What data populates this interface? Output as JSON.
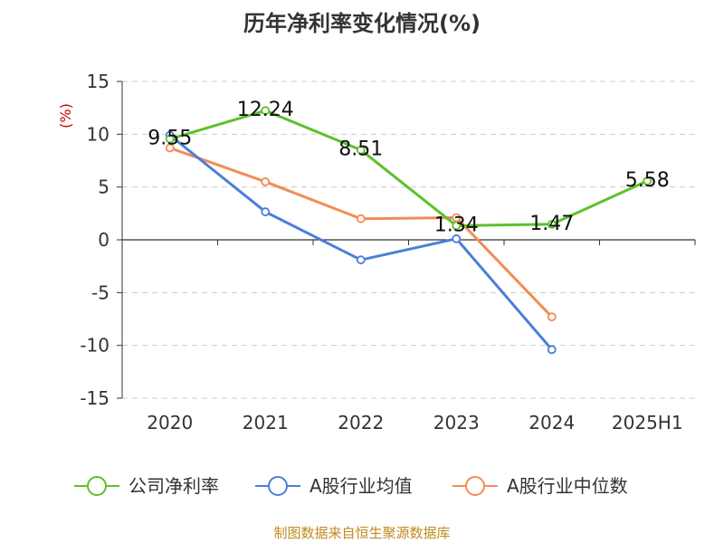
{
  "chart_data": {
    "type": "line",
    "title": "历年净利率变化情况(%)",
    "ylabel": "(%)",
    "xlabel": "",
    "categories": [
      "2020",
      "2021",
      "2022",
      "2023",
      "2024",
      "2025H1"
    ],
    "ylim": [
      -15,
      15
    ],
    "yticks": [
      15,
      10,
      5,
      0,
      -5,
      -10,
      -15
    ],
    "ytick_labels": [
      "15",
      "10",
      "5",
      "0",
      "-5",
      "-10",
      "-15"
    ],
    "grid": true,
    "legend_position": "bottom",
    "series": [
      {
        "name": "公司净利率",
        "color": "#5cc12b",
        "values": [
          9.55,
          12.24,
          8.51,
          1.34,
          1.47,
          5.58
        ],
        "labels": [
          "9.55",
          "12.24",
          "8.51",
          "1.34",
          "1.47",
          "5.58"
        ]
      },
      {
        "name": "A股行业均值",
        "color": "#4a7fd9",
        "values": [
          9.9,
          2.65,
          -1.9,
          0.1,
          -10.4,
          null
        ]
      },
      {
        "name": "A股行业中位数",
        "color": "#f28c55",
        "values": [
          8.7,
          5.5,
          2.0,
          2.1,
          -7.3,
          null
        ]
      }
    ],
    "source": "制图数据来自恒生聚源数据库"
  }
}
